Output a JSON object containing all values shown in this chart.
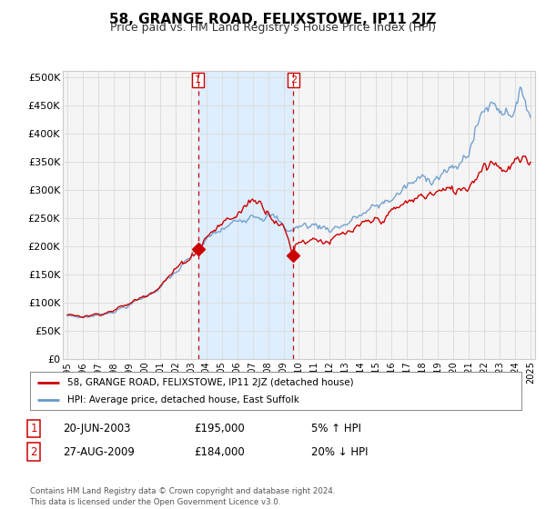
{
  "title": "58, GRANGE ROAD, FELIXSTOWE, IP11 2JZ",
  "subtitle": "Price paid vs. HM Land Registry's House Price Index (HPI)",
  "title_fontsize": 11,
  "subtitle_fontsize": 9,
  "ylabel_ticks": [
    "£0",
    "£50K",
    "£100K",
    "£150K",
    "£200K",
    "£250K",
    "£300K",
    "£350K",
    "£400K",
    "£450K",
    "£500K"
  ],
  "ytick_values": [
    0,
    50000,
    100000,
    150000,
    200000,
    250000,
    300000,
    350000,
    400000,
    450000,
    500000
  ],
  "ylim": [
    0,
    510000
  ],
  "xlim_start": 1994.7,
  "xlim_end": 2025.3,
  "background_color": "#ffffff",
  "plot_bg_color": "#f5f5f5",
  "grid_color": "#dddddd",
  "hpi_color": "#6699cc",
  "price_color": "#cc0000",
  "shade_color": "#ddeeff",
  "sale1_date_x": 2003.46,
  "sale1_price": 195000,
  "sale2_date_x": 2009.64,
  "sale2_price": 184000,
  "sale1_label": "1",
  "sale2_label": "2",
  "legend_line1": "58, GRANGE ROAD, FELIXSTOWE, IP11 2JZ (detached house)",
  "legend_line2": "HPI: Average price, detached house, East Suffolk",
  "table_row1_num": "1",
  "table_row1_date": "20-JUN-2003",
  "table_row1_price": "£195,000",
  "table_row1_hpi": "5% ↑ HPI",
  "table_row2_num": "2",
  "table_row2_date": "27-AUG-2009",
  "table_row2_price": "£184,000",
  "table_row2_hpi": "20% ↓ HPI",
  "footnote": "Contains HM Land Registry data © Crown copyright and database right 2024.\nThis data is licensed under the Open Government Licence v3.0.",
  "xtick_years": [
    1995,
    1996,
    1997,
    1998,
    1999,
    2000,
    2001,
    2002,
    2003,
    2004,
    2005,
    2006,
    2007,
    2008,
    2009,
    2010,
    2011,
    2012,
    2013,
    2014,
    2015,
    2016,
    2017,
    2018,
    2019,
    2020,
    2021,
    2022,
    2023,
    2024,
    2025
  ]
}
